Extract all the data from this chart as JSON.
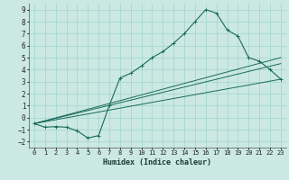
{
  "xlabel": "Humidex (Indice chaleur)",
  "xlim": [
    -0.5,
    23.5
  ],
  "ylim": [
    -2.5,
    9.5
  ],
  "yticks": [
    -2,
    -1,
    0,
    1,
    2,
    3,
    4,
    5,
    6,
    7,
    8,
    9
  ],
  "xticks": [
    0,
    1,
    2,
    3,
    4,
    5,
    6,
    7,
    8,
    9,
    10,
    11,
    12,
    13,
    14,
    15,
    16,
    17,
    18,
    19,
    20,
    21,
    22,
    23
  ],
  "bg_color": "#cbe8e3",
  "grid_color": "#a8d8d0",
  "line_color": "#1a6b5a",
  "line1_x": [
    0,
    1,
    2,
    3,
    4,
    5,
    6,
    7,
    8,
    9,
    10,
    11,
    12,
    13,
    14,
    15,
    16,
    17,
    18,
    19,
    20,
    21,
    22,
    23
  ],
  "line1_y": [
    -0.5,
    -0.8,
    -0.75,
    -0.8,
    -1.1,
    -1.7,
    -1.5,
    1.0,
    3.3,
    3.7,
    4.3,
    5.0,
    5.5,
    6.2,
    7.0,
    8.0,
    9.0,
    8.7,
    7.3,
    6.8,
    5.0,
    4.7,
    4.0,
    3.2
  ],
  "line2_y_end": 5.0,
  "line3_y_end": 4.5,
  "line4_y_end": 3.2,
  "line_start_y": -0.5
}
